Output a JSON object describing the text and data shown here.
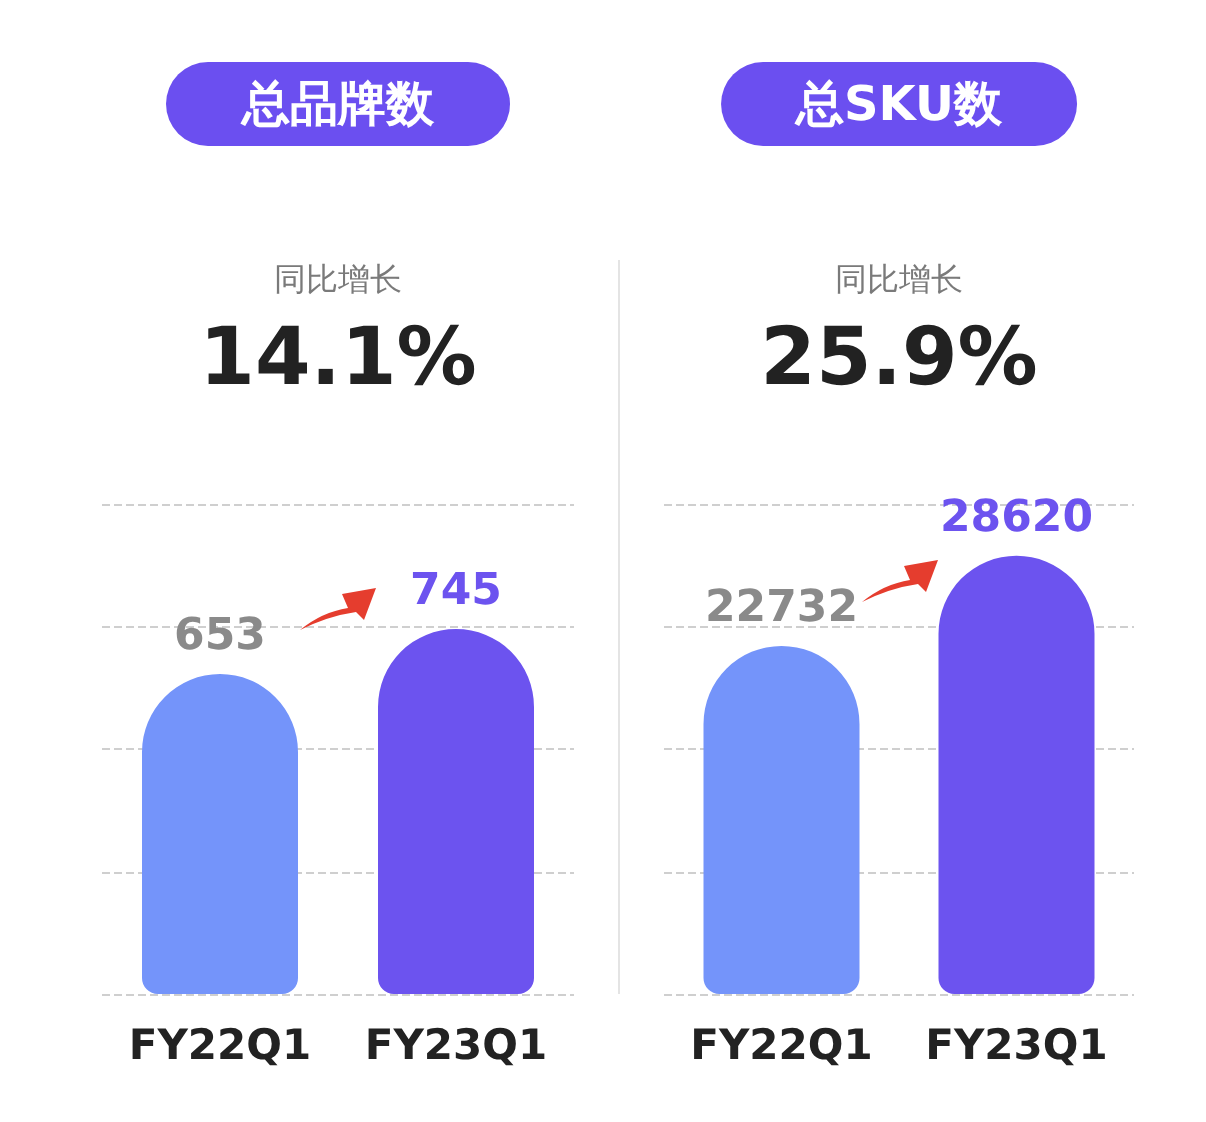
{
  "chart_data": [
    {
      "type": "bar",
      "title": "总品牌数",
      "subtitle": "同比增长",
      "annotations": [
        "14.1%"
      ],
      "categories": [
        "FY22Q1",
        "FY23Q1"
      ],
      "values": [
        653,
        745
      ],
      "colors": [
        "#7494fa",
        "#6c53ef"
      ],
      "data_labels": true,
      "ylim": [
        0,
        1000
      ],
      "yticks": [
        {
          "value": 0,
          "label": null
        },
        {
          "value": 250,
          "label": null
        },
        {
          "value": 500,
          "label": null
        },
        {
          "value": 750,
          "label": null
        },
        {
          "value": 1000,
          "label": null
        }
      ],
      "grid": "y",
      "tick_labels": "x"
    },
    {
      "type": "bar",
      "title": "总SKU数",
      "subtitle": "同比增长",
      "annotations": [
        "25.9%"
      ],
      "categories": [
        "FY22Q1",
        "FY23Q1"
      ],
      "values": [
        22732,
        28620
      ],
      "colors": [
        "#7494fa",
        "#6c53ef"
      ],
      "data_labels": true,
      "ylim": [
        0,
        32000
      ],
      "yticks": [
        {
          "value": 0,
          "label": null
        },
        {
          "value": 8000,
          "label": null
        },
        {
          "value": 16000,
          "label": null
        },
        {
          "value": 24000,
          "label": null
        },
        {
          "value": 32000,
          "label": null
        }
      ],
      "grid": "y",
      "tick_labels": "x"
    }
  ]
}
